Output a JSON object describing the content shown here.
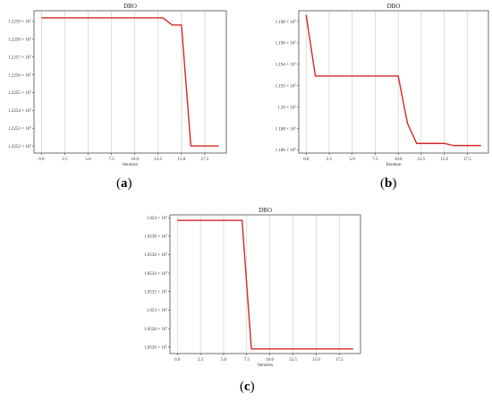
{
  "chart_data": [
    {
      "type": "line",
      "panel": "(a)",
      "panel_letter": "a",
      "title": "DBO",
      "xlabel": "Iteration",
      "ylabel": "",
      "xlim": [
        -0.8,
        19.8
      ],
      "ylim": [
        1.22516,
        1.22596
      ],
      "xticks": [
        0.0,
        2.5,
        5.0,
        7.5,
        10.0,
        12.5,
        15.0,
        17.5
      ],
      "xtick_labels": [
        "0.0",
        "2.5",
        "5.0",
        "7.5",
        "10.0",
        "12.5",
        "15.0",
        "17.5"
      ],
      "yticks": [
        1.2252,
        1.2253,
        1.2254,
        1.2255,
        1.2256,
        1.2257,
        1.2258,
        1.2259
      ],
      "ytick_mantissa": [
        "1.2252",
        "1.2253",
        "1.2254",
        "1.2255",
        "1.2256",
        "1.2257",
        "1.2258",
        "1.2259"
      ],
      "ytick_base": "× 10",
      "ytick_exp": "5",
      "grid": "x",
      "color": "#d62728",
      "x": [
        0,
        1,
        2,
        3,
        4,
        5,
        6,
        7,
        8,
        9,
        10,
        11,
        12,
        13,
        14,
        15,
        16,
        17,
        18,
        19
      ],
      "y": [
        1.22592,
        1.22592,
        1.22592,
        1.22592,
        1.22592,
        1.22592,
        1.22592,
        1.22592,
        1.22592,
        1.22592,
        1.22592,
        1.22592,
        1.22592,
        1.22592,
        1.22588,
        1.22588,
        1.2252,
        1.2252,
        1.2252,
        1.2252
      ]
    },
    {
      "type": "line",
      "panel": "(b)",
      "panel_letter": "b",
      "title": "DBO",
      "xlabel": "Iteration",
      "ylabel": "",
      "xlim": [
        -0.8,
        19.8
      ],
      "ylim": [
        1.1857,
        1.199
      ],
      "xticks": [
        0.0,
        2.5,
        5.0,
        7.5,
        10.0,
        12.5,
        15.0,
        17.5
      ],
      "xtick_labels": [
        "0.0",
        "2.5",
        "5.0",
        "7.5",
        "10.0",
        "12.5",
        "15.0",
        "17.5"
      ],
      "yticks": [
        1.186,
        1.188,
        1.19,
        1.192,
        1.194,
        1.196,
        1.198
      ],
      "ytick_mantissa": [
        "1.186",
        "1.188",
        "1.19",
        "1.192",
        "1.194",
        "1.196",
        "1.198"
      ],
      "ytick_base": "× 10",
      "ytick_exp": "5",
      "grid": "x",
      "color": "#d62728",
      "x": [
        0,
        1,
        2,
        3,
        4,
        5,
        6,
        7,
        8,
        9,
        10,
        11,
        12,
        13,
        14,
        15,
        16,
        17,
        18,
        19
      ],
      "y": [
        1.1986,
        1.1929,
        1.1929,
        1.1929,
        1.1929,
        1.1929,
        1.1929,
        1.1929,
        1.1929,
        1.1929,
        1.1929,
        1.1885,
        1.1866,
        1.1866,
        1.1866,
        1.1866,
        1.1864,
        1.1864,
        1.1864,
        1.1864
      ]
    },
    {
      "type": "line",
      "panel": "(c)",
      "panel_letter": "c",
      "title": "DBO",
      "xlabel": "Iteration",
      "ylabel": "",
      "xlim": [
        -0.8,
        19.8
      ],
      "ylim": [
        1.05253,
        1.05403
      ],
      "xticks": [
        0.0,
        2.5,
        5.0,
        7.5,
        10.0,
        12.5,
        15.0,
        17.5
      ],
      "xtick_labels": [
        "0.0",
        "2.5",
        "5.0",
        "7.5",
        "10.0",
        "12.5",
        "15.0",
        "17.5"
      ],
      "yticks": [
        1.0526,
        1.0528,
        1.053,
        1.0532,
        1.0534,
        1.0536,
        1.0538,
        1.054
      ],
      "ytick_mantissa": [
        "1.0526",
        "1.0528",
        "1.053",
        "1.0532",
        "1.0534",
        "1.0536",
        "1.0538",
        "1.054"
      ],
      "ytick_base": "× 10",
      "ytick_exp": "5",
      "grid": "x",
      "color": "#d62728",
      "x": [
        0,
        1,
        2,
        3,
        4,
        5,
        6,
        7,
        8,
        9,
        10,
        11,
        12,
        13,
        14,
        15,
        16,
        17,
        18,
        19
      ],
      "y": [
        1.05397,
        1.05397,
        1.05397,
        1.05397,
        1.05397,
        1.05397,
        1.05397,
        1.05397,
        1.05258,
        1.05258,
        1.05258,
        1.05258,
        1.05258,
        1.05258,
        1.05258,
        1.05258,
        1.05258,
        1.05258,
        1.05258,
        1.05258
      ]
    }
  ]
}
